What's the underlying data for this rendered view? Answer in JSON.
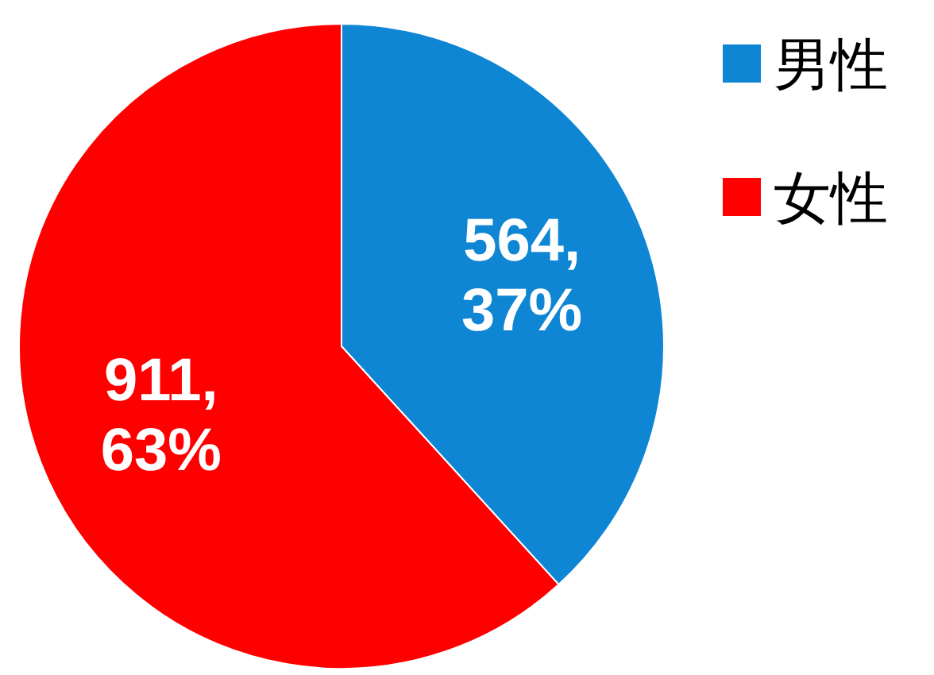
{
  "chart_data": {
    "type": "pie",
    "categories": [
      "男性",
      "女性"
    ],
    "values": [
      564,
      911
    ],
    "colors": [
      "#0e86d4",
      "#ff0000"
    ],
    "value_labels": [
      "564, 37%",
      "911, 63%"
    ],
    "legend": "top right"
  }
}
